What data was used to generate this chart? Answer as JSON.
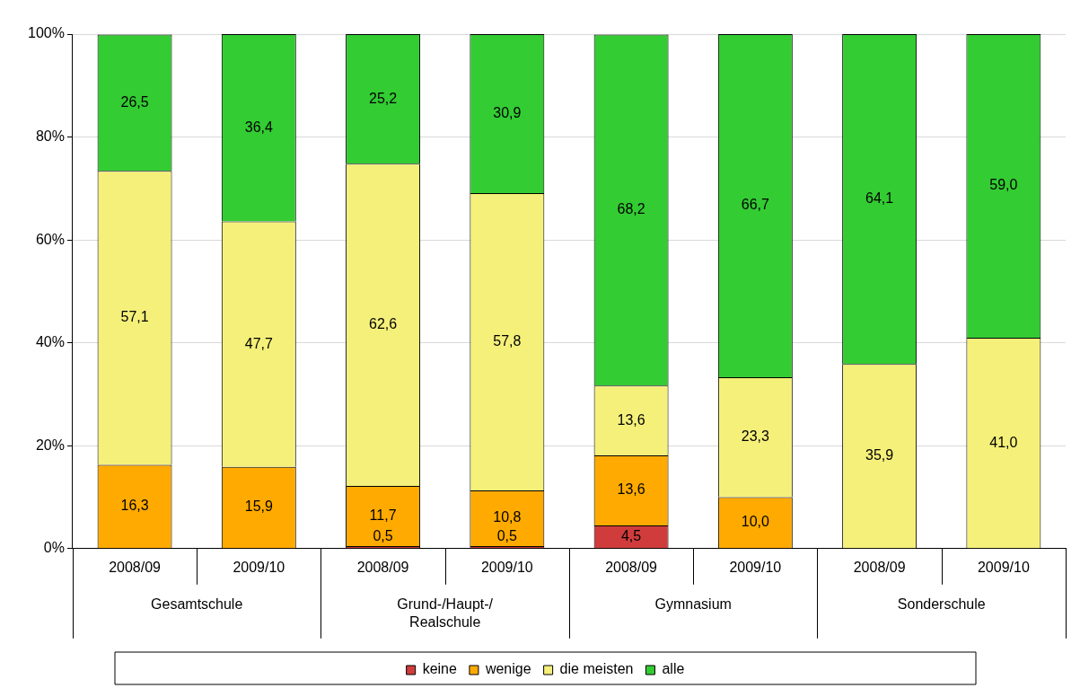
{
  "chart_data": {
    "type": "bar",
    "stacked": true,
    "categories": [
      "2008/09",
      "2009/10",
      "2008/09",
      "2009/10",
      "2008/09",
      "2009/10",
      "2008/09",
      "2009/10"
    ],
    "annotations": [
      "Gesamtschule",
      "Grund-/Haupt-/ Realschule",
      "Gymnasium",
      "Sonderschule"
    ],
    "series": [
      {
        "name": "keine",
        "color": "#d03c3c",
        "values": [
          null,
          null,
          0.5,
          0.5,
          4.5,
          null,
          null,
          null
        ],
        "value_labels": [
          null,
          null,
          "0,5",
          "0,5",
          "4,5",
          null,
          null,
          null
        ]
      },
      {
        "name": "wenige",
        "color": "#ffaa00",
        "values": [
          16.3,
          15.9,
          11.7,
          10.8,
          13.6,
          10.0,
          null,
          null
        ],
        "value_labels": [
          "16,3",
          "15,9",
          "11,7",
          "10,8",
          "13,6",
          "10,0",
          null,
          null
        ]
      },
      {
        "name": "die meisten",
        "color": "#f5f07a",
        "values": [
          57.1,
          47.7,
          62.6,
          57.8,
          13.6,
          23.3,
          35.9,
          41.0
        ],
        "value_labels": [
          "57,1",
          "47,7",
          "62,6",
          "57,8",
          "13,6",
          "23,3",
          "35,9",
          "41,0"
        ]
      },
      {
        "name": "alle",
        "color": "#33cc33",
        "values": [
          26.5,
          36.4,
          25.2,
          30.9,
          68.2,
          66.7,
          64.1,
          59.0
        ],
        "value_labels": [
          "26,5",
          "36,4",
          "25,2",
          "30,9",
          "68,2",
          "66,7",
          "64,1",
          "59,0"
        ]
      }
    ],
    "ylim": [
      0,
      100
    ],
    "yticks": [
      {
        "value": 0,
        "label": "0%"
      },
      {
        "value": 20,
        "label": "20%"
      },
      {
        "value": 40,
        "label": "40%"
      },
      {
        "value": 60,
        "label": "60%"
      },
      {
        "value": 80,
        "label": "80%"
      },
      {
        "value": 100,
        "label": "100%"
      }
    ],
    "grid": "y",
    "legend": "bottom"
  }
}
